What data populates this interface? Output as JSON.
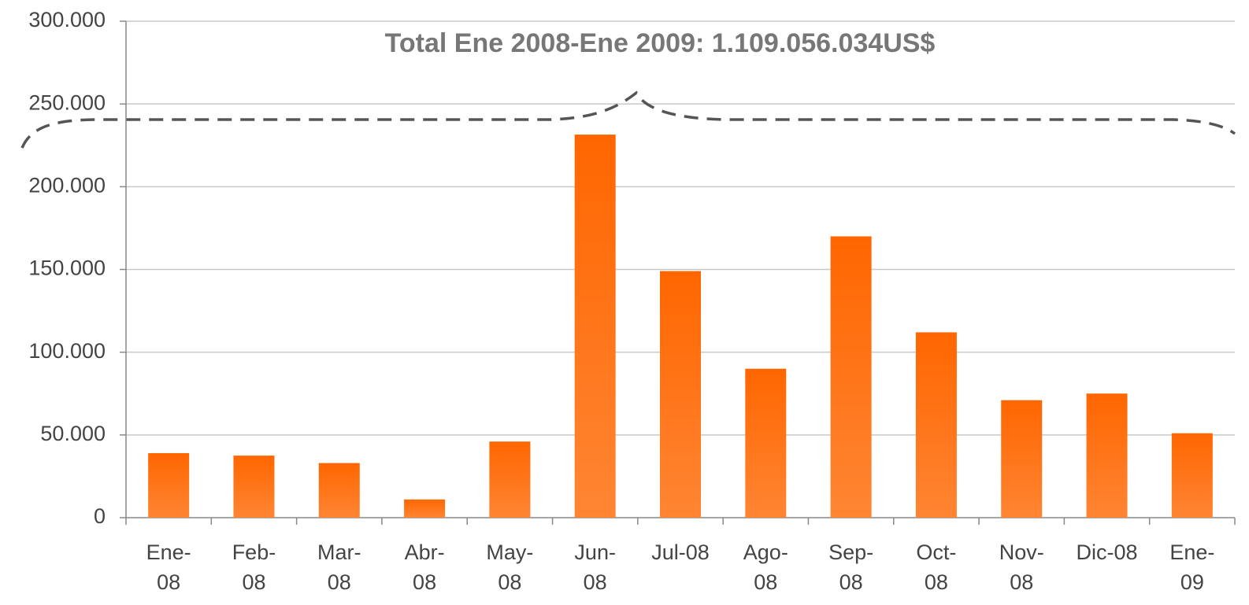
{
  "chart_data": {
    "type": "bar",
    "title": "Total Ene 2008-Ene 2009: 1.109.056.034US$",
    "categories": [
      "Ene-08",
      "Feb-08",
      "Mar-08",
      "Abr-08",
      "May-08",
      "Jun-08",
      "Jul-08",
      "Ago-08",
      "Sep-08",
      "Oct-08",
      "Nov-08",
      "Dic-08",
      "Ene-09"
    ],
    "values": [
      39000,
      37500,
      33000,
      11000,
      46000,
      231500,
      149000,
      90000,
      170000,
      112000,
      71000,
      75000,
      51000
    ],
    "color": "#ff6600",
    "ylim": [
      0,
      300000
    ],
    "yticks": [
      0,
      {
        "value": 50000,
        "label": "50.000"
      },
      {
        "value": 100000,
        "label": "100.000"
      },
      {
        "value": 150000,
        "label": "150.000"
      },
      {
        "value": 200000,
        "label": "200.000"
      },
      {
        "value": 250000,
        "label": "250.000"
      },
      {
        "value": 300000,
        "label": "300.000"
      }
    ],
    "grid": true
  }
}
